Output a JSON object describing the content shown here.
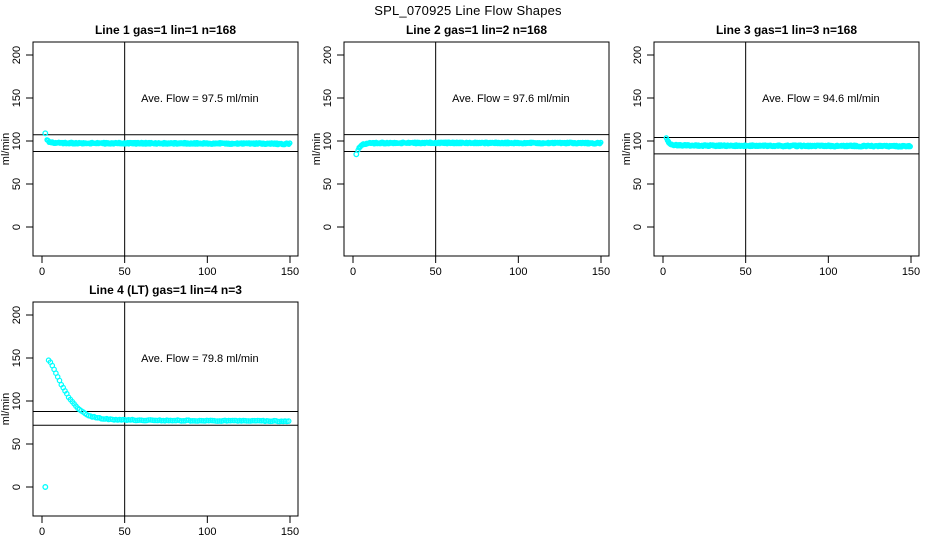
{
  "page": {
    "title": "SPL_070925  Line Flow Shapes"
  },
  "colors": {
    "marker": "#00FFFF",
    "axis": "#000000",
    "background": "#FFFFFF"
  },
  "chart_data": [
    {
      "type": "scatter",
      "title": "Line 1 gas=1 lin=1 n=168",
      "annotation": "Ave. Flow =  97.5  ml/min",
      "ave_flow": 97.5,
      "xlabel": "",
      "ylabel": "ml/min",
      "xlim": [
        0,
        150
      ],
      "ylim": [
        0,
        200
      ],
      "xticks": [
        0,
        50,
        100,
        150
      ],
      "yticks": [
        0,
        50,
        100,
        150,
        200
      ],
      "vline_x": 50,
      "hlines": [
        107.3,
        87.8
      ],
      "n_traces": 168,
      "marker": "open-circle",
      "band_halfwidth": 1.0,
      "outliers": [
        [
          2,
          109
        ]
      ],
      "points": [
        [
          3,
          101
        ],
        [
          4,
          99.5
        ],
        [
          5,
          98.8
        ],
        [
          7,
          98.2
        ],
        [
          10,
          97.8
        ],
        [
          15,
          97.6
        ],
        [
          25,
          97.5
        ],
        [
          50,
          97.4
        ],
        [
          75,
          97.3
        ],
        [
          100,
          97.2
        ],
        [
          125,
          97.0
        ],
        [
          150,
          96.7
        ]
      ]
    },
    {
      "type": "scatter",
      "title": "Line 2 gas=1 lin=2 n=168",
      "annotation": "Ave. Flow =  97.6  ml/min",
      "ave_flow": 97.6,
      "xlabel": "",
      "ylabel": "ml/min",
      "xlim": [
        0,
        150
      ],
      "ylim": [
        0,
        200
      ],
      "xticks": [
        0,
        50,
        100,
        150
      ],
      "yticks": [
        0,
        50,
        100,
        150,
        200
      ],
      "vline_x": 50,
      "hlines": [
        107.4,
        87.8
      ],
      "n_traces": 168,
      "marker": "open-circle",
      "band_halfwidth": 1.0,
      "outliers": [
        [
          2,
          84.5
        ]
      ],
      "points": [
        [
          3,
          89
        ],
        [
          4,
          93
        ],
        [
          5,
          95
        ],
        [
          6,
          96.3
        ],
        [
          8,
          97.2
        ],
        [
          12,
          97.6
        ],
        [
          25,
          97.8
        ],
        [
          50,
          97.8
        ],
        [
          100,
          97.7
        ],
        [
          150,
          97.5
        ]
      ]
    },
    {
      "type": "scatter",
      "title": "Line 3 gas=1 lin=3 n=168",
      "annotation": "Ave. Flow =  94.6  ml/min",
      "ave_flow": 94.6,
      "xlabel": "",
      "ylabel": "ml/min",
      "xlim": [
        0,
        150
      ],
      "ylim": [
        0,
        200
      ],
      "xticks": [
        0,
        50,
        100,
        150
      ],
      "yticks": [
        0,
        50,
        100,
        150,
        200
      ],
      "vline_x": 50,
      "hlines": [
        104.1,
        85.1
      ],
      "n_traces": 168,
      "marker": "open-circle",
      "band_halfwidth": 1.0,
      "outliers": [],
      "points": [
        [
          2,
          103
        ],
        [
          3,
          99.5
        ],
        [
          4,
          97.5
        ],
        [
          5,
          96.3
        ],
        [
          7,
          95.4
        ],
        [
          10,
          95.0
        ],
        [
          15,
          94.8
        ],
        [
          25,
          94.7
        ],
        [
          50,
          94.5
        ],
        [
          100,
          94.3
        ],
        [
          150,
          94.0
        ]
      ]
    },
    {
      "type": "scatter",
      "title": "Line 4 (LT) gas=1 lin=4 n=3",
      "annotation": "Ave. Flow =  79.8  ml/min",
      "ave_flow": 79.8,
      "xlabel": "",
      "ylabel": "ml/min",
      "xlim": [
        0,
        150
      ],
      "ylim": [
        0,
        200
      ],
      "xticks": [
        0,
        50,
        100,
        150
      ],
      "yticks": [
        0,
        50,
        100,
        150,
        200
      ],
      "vline_x": 50,
      "hlines": [
        87.8,
        71.8
      ],
      "n_traces": 3,
      "marker": "open-circle",
      "band_halfwidth": 0.5,
      "outliers": [
        [
          2,
          0
        ]
      ],
      "points": [
        [
          4,
          147
        ],
        [
          5,
          145
        ],
        [
          6,
          142
        ],
        [
          7,
          138
        ],
        [
          8,
          134
        ],
        [
          10,
          126
        ],
        [
          12,
          118
        ],
        [
          14,
          111
        ],
        [
          16,
          105
        ],
        [
          18,
          99.5
        ],
        [
          20,
          95
        ],
        [
          22,
          91
        ],
        [
          24,
          88
        ],
        [
          26,
          85.5
        ],
        [
          28,
          83.5
        ],
        [
          30,
          82
        ],
        [
          33,
          80.7
        ],
        [
          36,
          79.7
        ],
        [
          40,
          78.9
        ],
        [
          45,
          78.3
        ],
        [
          50,
          78.0
        ],
        [
          60,
          77.7
        ],
        [
          75,
          77.4
        ],
        [
          90,
          77.2
        ],
        [
          110,
          77.0
        ],
        [
          130,
          76.8
        ],
        [
          150,
          76.5
        ]
      ]
    }
  ]
}
